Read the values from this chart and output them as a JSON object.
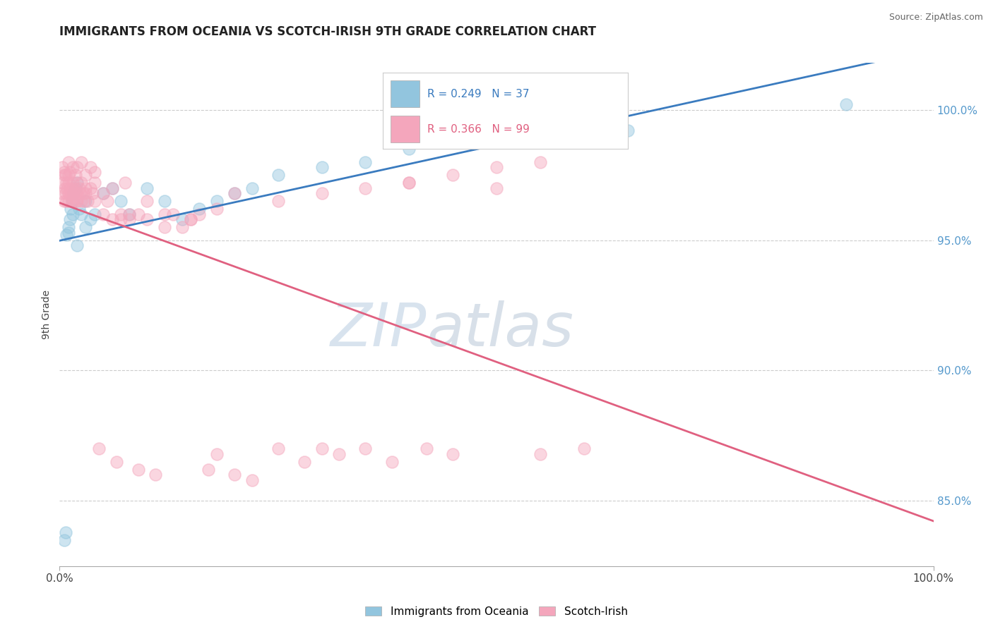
{
  "title": "IMMIGRANTS FROM OCEANIA VS SCOTCH-IRISH 9TH GRADE CORRELATION CHART",
  "source": "Source: ZipAtlas.com",
  "ylabel": "9th Grade",
  "x_min": 0.0,
  "x_max": 1.0,
  "y_min": 0.825,
  "y_max": 1.018,
  "right_y_ticks": [
    0.85,
    0.9,
    0.95,
    1.0
  ],
  "right_y_labels": [
    "85.0%",
    "90.0%",
    "95.0%",
    "100.0%"
  ],
  "legend_blue_label": "Immigrants from Oceania",
  "legend_pink_label": "Scotch-Irish",
  "blue_R": 0.249,
  "blue_N": 37,
  "pink_R": 0.366,
  "pink_N": 99,
  "blue_color": "#92c5de",
  "pink_color": "#f4a6bc",
  "blue_line_color": "#3a7bbf",
  "pink_line_color": "#e06080",
  "blue_x": [
    0.005,
    0.007,
    0.008,
    0.01,
    0.01,
    0.012,
    0.013,
    0.014,
    0.015,
    0.016,
    0.018,
    0.02,
    0.02,
    0.022,
    0.025,
    0.03,
    0.03,
    0.035,
    0.04,
    0.05,
    0.06,
    0.07,
    0.08,
    0.1,
    0.12,
    0.14,
    0.16,
    0.18,
    0.2,
    0.22,
    0.25,
    0.3,
    0.35,
    0.4,
    0.5,
    0.65,
    0.9
  ],
  "blue_y": [
    0.835,
    0.838,
    0.952,
    0.955,
    0.953,
    0.958,
    0.962,
    0.965,
    0.96,
    0.968,
    0.97,
    0.972,
    0.948,
    0.962,
    0.96,
    0.955,
    0.965,
    0.958,
    0.96,
    0.968,
    0.97,
    0.965,
    0.96,
    0.97,
    0.965,
    0.958,
    0.962,
    0.965,
    0.968,
    0.97,
    0.975,
    0.978,
    0.98,
    0.985,
    0.988,
    0.992,
    1.002
  ],
  "pink_x": [
    0.003,
    0.004,
    0.005,
    0.005,
    0.006,
    0.007,
    0.008,
    0.008,
    0.009,
    0.01,
    0.01,
    0.01,
    0.01,
    0.012,
    0.013,
    0.014,
    0.015,
    0.015,
    0.016,
    0.017,
    0.018,
    0.019,
    0.02,
    0.02,
    0.02,
    0.022,
    0.023,
    0.025,
    0.025,
    0.027,
    0.028,
    0.03,
    0.03,
    0.032,
    0.035,
    0.038,
    0.04,
    0.04,
    0.045,
    0.05,
    0.055,
    0.06,
    0.065,
    0.07,
    0.075,
    0.08,
    0.09,
    0.1,
    0.11,
    0.12,
    0.13,
    0.14,
    0.15,
    0.16,
    0.17,
    0.18,
    0.2,
    0.22,
    0.25,
    0.28,
    0.3,
    0.32,
    0.35,
    0.38,
    0.4,
    0.42,
    0.45,
    0.5,
    0.55,
    0.6,
    0.003,
    0.005,
    0.007,
    0.01,
    0.012,
    0.015,
    0.018,
    0.02,
    0.025,
    0.03,
    0.035,
    0.04,
    0.05,
    0.06,
    0.07,
    0.08,
    0.09,
    0.1,
    0.12,
    0.15,
    0.18,
    0.2,
    0.25,
    0.3,
    0.35,
    0.4,
    0.45,
    0.5,
    0.55
  ],
  "pink_y": [
    0.968,
    0.972,
    0.965,
    0.975,
    0.97,
    0.968,
    0.972,
    0.965,
    0.97,
    0.975,
    0.972,
    0.968,
    0.965,
    0.97,
    0.968,
    0.965,
    0.972,
    0.968,
    0.965,
    0.97,
    0.968,
    0.965,
    0.972,
    0.968,
    0.965,
    0.97,
    0.968,
    0.972,
    0.965,
    0.968,
    0.965,
    0.97,
    0.968,
    0.965,
    0.97,
    0.968,
    0.972,
    0.965,
    0.87,
    0.968,
    0.965,
    0.97,
    0.865,
    0.958,
    0.972,
    0.96,
    0.862,
    0.958,
    0.86,
    0.955,
    0.96,
    0.955,
    0.958,
    0.96,
    0.862,
    0.868,
    0.86,
    0.858,
    0.87,
    0.865,
    0.87,
    0.868,
    0.87,
    0.865,
    0.972,
    0.87,
    0.868,
    0.97,
    0.868,
    0.87,
    0.978,
    0.976,
    0.975,
    0.98,
    0.976,
    0.978,
    0.975,
    0.978,
    0.98,
    0.975,
    0.978,
    0.976,
    0.96,
    0.958,
    0.96,
    0.958,
    0.96,
    0.965,
    0.96,
    0.958,
    0.962,
    0.968,
    0.965,
    0.968,
    0.97,
    0.972,
    0.975,
    0.978,
    0.98
  ]
}
